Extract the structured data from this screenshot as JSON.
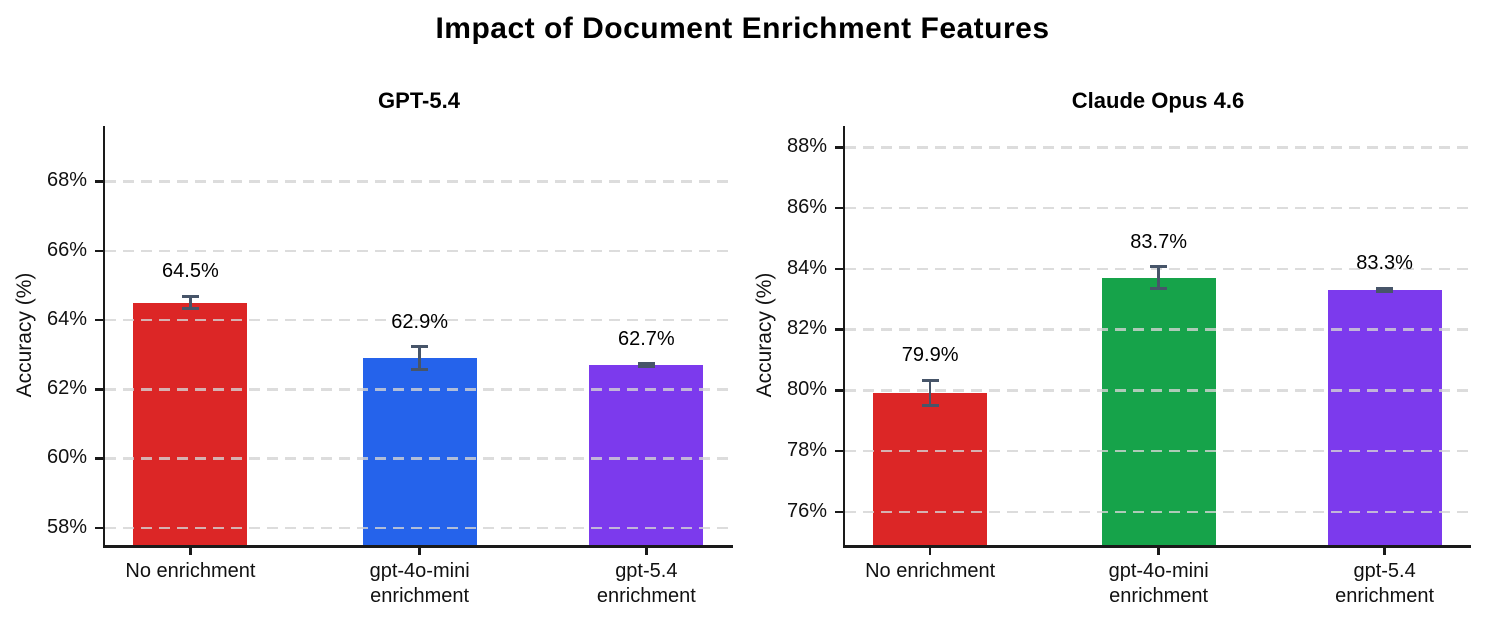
{
  "page": {
    "suptitle": "Impact of Document Enrichment Features",
    "background_color": "#ffffff"
  },
  "style": {
    "error_bar_color": "#475569",
    "grid_color": "#d4d4d4",
    "spine_color": "#1a1a1a",
    "text_color": "#111111"
  },
  "chart_data": [
    {
      "type": "bar",
      "title": "GPT-5.4",
      "ylabel": "Accuracy (%)",
      "categories": [
        "No enrichment",
        "gpt-4o-mini\nenrichment",
        "gpt-5.4\nenrichment"
      ],
      "values": [
        64.5,
        62.9,
        62.7
      ],
      "errors": [
        0.18,
        0.32,
        0.04
      ],
      "value_labels": [
        "64.5%",
        "62.9%",
        "62.7%"
      ],
      "bar_colors": [
        "#dc2626",
        "#2563eb",
        "#7c3aed"
      ],
      "yticks": [
        58,
        60,
        62,
        64,
        66,
        68
      ],
      "ytick_labels": [
        "58%",
        "60%",
        "62%",
        "64%",
        "66%",
        "68%"
      ],
      "ylim": [
        57.5,
        69.6
      ],
      "grid": "horizontal dashed, drawn above bars",
      "legend": "none"
    },
    {
      "type": "bar",
      "title": "Claude Opus 4.6",
      "ylabel": "Accuracy (%)",
      "categories": [
        "No enrichment",
        "gpt-4o-mini\nenrichment",
        "gpt-5.4\nenrichment"
      ],
      "values": [
        79.9,
        83.7,
        83.3
      ],
      "errors": [
        0.42,
        0.36,
        0.06
      ],
      "value_labels": [
        "79.9%",
        "83.7%",
        "83.3%"
      ],
      "bar_colors": [
        "#dc2626",
        "#16a34a",
        "#7c3aed"
      ],
      "yticks": [
        76,
        78,
        80,
        82,
        84,
        86,
        88
      ],
      "ytick_labels": [
        "76%",
        "78%",
        "80%",
        "82%",
        "84%",
        "86%",
        "88%"
      ],
      "ylim": [
        74.9,
        88.7
      ],
      "grid": "horizontal dashed, drawn above bars",
      "legend": "none"
    }
  ]
}
